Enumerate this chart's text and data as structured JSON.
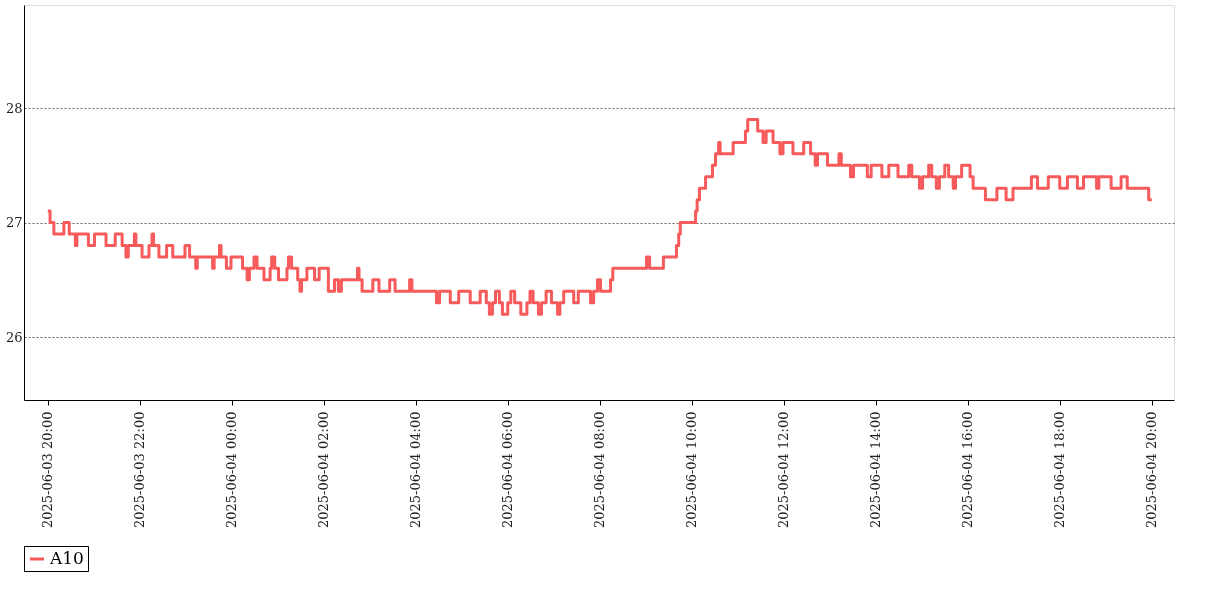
{
  "chart_data": {
    "type": "step",
    "x": [
      "2025-06-03T20:00",
      "2025-06-03T20:03",
      "2025-06-03T20:08",
      "2025-06-03T20:21",
      "2025-06-03T20:28",
      "2025-06-03T20:36",
      "2025-06-03T20:38",
      "2025-06-03T20:53",
      "2025-06-03T21:01",
      "2025-06-03T21:16",
      "2025-06-03T21:28",
      "2025-06-03T21:37",
      "2025-06-03T21:42",
      "2025-06-03T21:45",
      "2025-06-03T21:53",
      "2025-06-03T21:55",
      "2025-06-03T22:03",
      "2025-06-03T22:12",
      "2025-06-03T22:16",
      "2025-06-03T22:18",
      "2025-06-03T22:25",
      "2025-06-03T22:35",
      "2025-06-03T22:43",
      "2025-06-03T22:59",
      "2025-06-03T23:05",
      "2025-06-03T23:13",
      "2025-06-03T23:15",
      "2025-06-03T23:35",
      "2025-06-03T23:37",
      "2025-06-03T23:44",
      "2025-06-03T23:46",
      "2025-06-03T23:53",
      "2025-06-03T23:59",
      "2025-06-04T00:14",
      "2025-06-04T00:20",
      "2025-06-04T00:23",
      "2025-06-04T00:29",
      "2025-06-04T00:33",
      "2025-06-04T00:42",
      "2025-06-04T00:50",
      "2025-06-04T00:52",
      "2025-06-04T00:56",
      "2025-06-04T01:01",
      "2025-06-04T01:12",
      "2025-06-04T01:14",
      "2025-06-04T01:18",
      "2025-06-04T01:26",
      "2025-06-04T01:29",
      "2025-06-04T01:31",
      "2025-06-04T01:38",
      "2025-06-04T01:48",
      "2025-06-04T01:54",
      "2025-06-04T02:06",
      "2025-06-04T02:14",
      "2025-06-04T02:19",
      "2025-06-04T02:23",
      "2025-06-04T02:44",
      "2025-06-04T02:46",
      "2025-06-04T02:50",
      "2025-06-04T03:04",
      "2025-06-04T03:12",
      "2025-06-04T03:26",
      "2025-06-04T03:33",
      "2025-06-04T03:52",
      "2025-06-04T03:55",
      "2025-06-04T04:27",
      "2025-06-04T04:31",
      "2025-06-04T04:45",
      "2025-06-04T04:56",
      "2025-06-04T05:11",
      "2025-06-04T05:24",
      "2025-06-04T05:32",
      "2025-06-04T05:36",
      "2025-06-04T05:40",
      "2025-06-04T05:44",
      "2025-06-04T05:49",
      "2025-06-04T05:53",
      "2025-06-04T06:00",
      "2025-06-04T06:04",
      "2025-06-04T06:09",
      "2025-06-04T06:17",
      "2025-06-04T06:25",
      "2025-06-04T06:29",
      "2025-06-04T06:33",
      "2025-06-04T06:40",
      "2025-06-04T06:44",
      "2025-06-04T06:50",
      "2025-06-04T06:57",
      "2025-06-04T07:05",
      "2025-06-04T07:08",
      "2025-06-04T07:13",
      "2025-06-04T07:26",
      "2025-06-04T07:32",
      "2025-06-04T07:48",
      "2025-06-04T07:52",
      "2025-06-04T07:57",
      "2025-06-04T08:01",
      "2025-06-04T08:14",
      "2025-06-04T08:17",
      "2025-06-04T09:01",
      "2025-06-04T09:05",
      "2025-06-04T09:23",
      "2025-06-04T09:40",
      "2025-06-04T09:43",
      "2025-06-04T09:45",
      "2025-06-04T10:05",
      "2025-06-04T10:07",
      "2025-06-04T10:10",
      "2025-06-04T10:18",
      "2025-06-04T10:27",
      "2025-06-04T10:31",
      "2025-06-04T10:35",
      "2025-06-04T10:37",
      "2025-06-04T10:54",
      "2025-06-04T11:10",
      "2025-06-04T11:13",
      "2025-06-04T11:26",
      "2025-06-04T11:33",
      "2025-06-04T11:37",
      "2025-06-04T11:46",
      "2025-06-04T11:55",
      "2025-06-04T11:59",
      "2025-06-04T12:12",
      "2025-06-04T12:26",
      "2025-06-04T12:35",
      "2025-06-04T12:41",
      "2025-06-04T12:44",
      "2025-06-04T12:57",
      "2025-06-04T13:12",
      "2025-06-04T13:15",
      "2025-06-04T13:27",
      "2025-06-04T13:31",
      "2025-06-04T13:49",
      "2025-06-04T13:54",
      "2025-06-04T14:08",
      "2025-06-04T14:17",
      "2025-06-04T14:29",
      "2025-06-04T14:43",
      "2025-06-04T14:47",
      "2025-06-04T14:57",
      "2025-06-04T15:01",
      "2025-06-04T15:09",
      "2025-06-04T15:13",
      "2025-06-04T15:19",
      "2025-06-04T15:23",
      "2025-06-04T15:30",
      "2025-06-04T15:35",
      "2025-06-04T15:41",
      "2025-06-04T15:44",
      "2025-06-04T15:52",
      "2025-06-04T16:03",
      "2025-06-04T16:07",
      "2025-06-04T16:23",
      "2025-06-04T16:38",
      "2025-06-04T16:50",
      "2025-06-04T16:59",
      "2025-06-04T17:23",
      "2025-06-04T17:31",
      "2025-06-04T17:45",
      "2025-06-04T18:00",
      "2025-06-04T18:10",
      "2025-06-04T18:23",
      "2025-06-04T18:31",
      "2025-06-04T18:48",
      "2025-06-04T18:51",
      "2025-06-04T19:07",
      "2025-06-04T19:20",
      "2025-06-04T19:28",
      "2025-06-04T19:56",
      "2025-06-04T20:00"
    ],
    "series": [
      {
        "name": "A10",
        "color": "#f65a5a",
        "values": [
          27.1,
          27.0,
          26.9,
          27.0,
          26.9,
          26.8,
          26.9,
          26.8,
          26.9,
          26.8,
          26.9,
          26.8,
          26.7,
          26.8,
          26.9,
          26.8,
          26.7,
          26.8,
          26.9,
          26.8,
          26.7,
          26.8,
          26.7,
          26.8,
          26.7,
          26.6,
          26.7,
          26.6,
          26.7,
          26.8,
          26.7,
          26.6,
          26.7,
          26.6,
          26.5,
          26.6,
          26.7,
          26.6,
          26.5,
          26.6,
          26.7,
          26.6,
          26.5,
          26.6,
          26.7,
          26.6,
          26.5,
          26.4,
          26.5,
          26.6,
          26.5,
          26.6,
          26.4,
          26.5,
          26.4,
          26.5,
          26.6,
          26.5,
          26.4,
          26.5,
          26.4,
          26.5,
          26.4,
          26.5,
          26.4,
          26.3,
          26.4,
          26.3,
          26.4,
          26.3,
          26.4,
          26.3,
          26.2,
          26.3,
          26.4,
          26.3,
          26.2,
          26.3,
          26.4,
          26.3,
          26.2,
          26.3,
          26.4,
          26.3,
          26.2,
          26.3,
          26.4,
          26.3,
          26.2,
          26.3,
          26.4,
          26.3,
          26.4,
          26.3,
          26.4,
          26.5,
          26.4,
          26.5,
          26.6,
          26.7,
          26.6,
          26.7,
          26.8,
          26.9,
          27.0,
          27.1,
          27.2,
          27.3,
          27.4,
          27.5,
          27.6,
          27.7,
          27.6,
          27.7,
          27.8,
          27.9,
          27.8,
          27.7,
          27.8,
          27.7,
          27.6,
          27.7,
          27.6,
          27.7,
          27.6,
          27.5,
          27.6,
          27.5,
          27.6,
          27.5,
          27.4,
          27.5,
          27.4,
          27.5,
          27.4,
          27.5,
          27.4,
          27.5,
          27.4,
          27.3,
          27.4,
          27.5,
          27.4,
          27.3,
          27.4,
          27.5,
          27.4,
          27.3,
          27.4,
          27.5,
          27.4,
          27.3,
          27.2,
          27.3,
          27.2,
          27.3,
          27.4,
          27.3,
          27.4,
          27.3,
          27.4,
          27.3,
          27.4,
          27.3,
          27.4,
          27.3,
          27.4,
          27.3,
          27.2,
          27.2
        ]
      }
    ],
    "xlim": [
      "2025-06-03T19:29",
      "2025-06-04T20:29"
    ],
    "xticks": [
      {
        "value": "2025-06-03T20:00",
        "label": "2025-06-03 20:00"
      },
      {
        "value": "2025-06-03T22:00",
        "label": "2025-06-03 22:00"
      },
      {
        "value": "2025-06-04T00:00",
        "label": "2025-06-04 00:00"
      },
      {
        "value": "2025-06-04T02:00",
        "label": "2025-06-04 02:00"
      },
      {
        "value": "2025-06-04T04:00",
        "label": "2025-06-04 04:00"
      },
      {
        "value": "2025-06-04T06:00",
        "label": "2025-06-04 06:00"
      },
      {
        "value": "2025-06-04T08:00",
        "label": "2025-06-04 08:00"
      },
      {
        "value": "2025-06-04T10:00",
        "label": "2025-06-04 10:00"
      },
      {
        "value": "2025-06-04T12:00",
        "label": "2025-06-04 12:00"
      },
      {
        "value": "2025-06-04T14:00",
        "label": "2025-06-04 14:00"
      },
      {
        "value": "2025-06-04T16:00",
        "label": "2025-06-04 16:00"
      },
      {
        "value": "2025-06-04T18:00",
        "label": "2025-06-04 18:00"
      },
      {
        "value": "2025-06-04T20:00",
        "label": "2025-06-04 20:00"
      }
    ],
    "ylim": [
      25.45,
      28.9
    ],
    "yticks": [
      26,
      27,
      28
    ],
    "grid": "y",
    "legend": "bottom"
  }
}
